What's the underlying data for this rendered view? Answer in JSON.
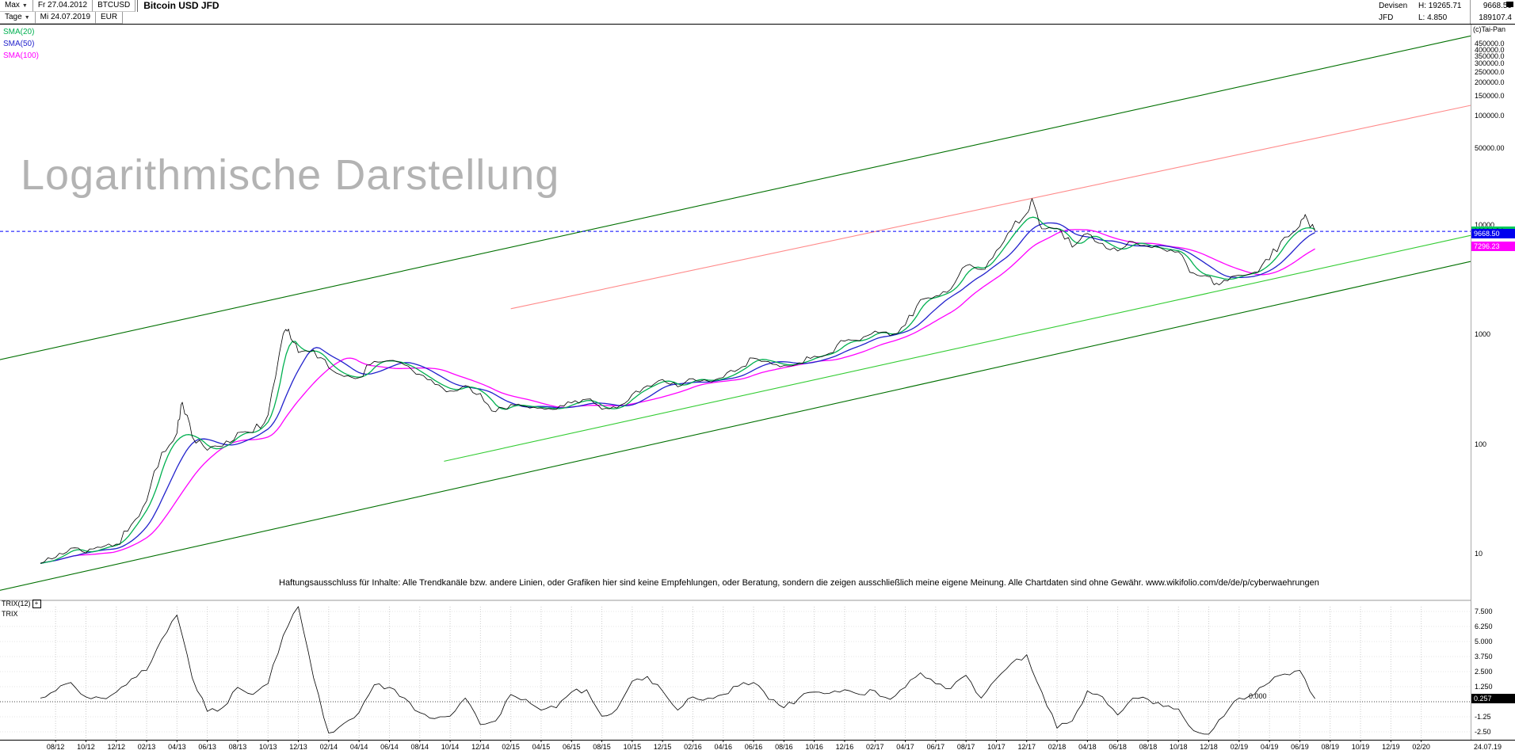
{
  "toolbar": {
    "range_label": "Max",
    "start_date": "Fr 27.04.2012",
    "symbol": "BTCUSD",
    "title": "Bitcoin USD JFD",
    "period_label": "Tage",
    "end_date": "Mi 24.07.2019",
    "currency": "EUR",
    "right": {
      "category": "Devisen",
      "provider": "JFD",
      "high": "H: 19265.71",
      "low": "L: 4.850",
      "last": "9668.50",
      "extra": "189107.4"
    }
  },
  "legend": [
    {
      "label": "SMA(20)",
      "color": "#00b050"
    },
    {
      "label": "SMA(50)",
      "color": "#2323cc"
    },
    {
      "label": "SMA(100)",
      "color": "#ff00ff"
    }
  ],
  "watermark": "Logarithmische Darstellung",
  "copyright": "(c)Tai-Pan",
  "price_axis": [
    {
      "text": "450000.0",
      "value": 450000
    },
    {
      "text": "400000.0",
      "value": 400000
    },
    {
      "text": "350000.0",
      "value": 350000
    },
    {
      "text": "300000.0",
      "value": 300000
    },
    {
      "text": "250000.0",
      "value": 250000
    },
    {
      "text": "200000.0",
      "value": 200000
    },
    {
      "text": "150000.0",
      "value": 150000
    },
    {
      "text": "100000.0",
      "value": 100000
    },
    {
      "text": "50000.00",
      "value": 50000
    },
    {
      "text": "10000",
      "value": 10000
    },
    {
      "text": "1000",
      "value": 1000
    },
    {
      "text": "100",
      "value": 100
    },
    {
      "text": "10",
      "value": 10
    }
  ],
  "price_markers": [
    {
      "text": "10064.34",
      "value": 10064.34,
      "bg": "#00c85a",
      "fg": "#000000"
    },
    {
      "text": "9668.50",
      "value": 9668.5,
      "bg": "#0000ee",
      "fg": "#ffffff"
    },
    {
      "text": "7296.23",
      "value": 7296.23,
      "bg": "#ff00ff",
      "fg": "#ffffff"
    }
  ],
  "disclaimer": "Haftungsausschluss für Inhalte: Alle Trendkanäle bzw. andere Linien, oder Grafiken hier sind keine Empfehlungen, oder Beratung, sondern die zeigen ausschließlich meine eigene Meinung. Alle Chartdaten sind ohne Gewähr.  www.wikifolio.com/de/de/p/cyberwaehrungen",
  "trix_panel": {
    "label": "TRIX(12)",
    "plus": "+",
    "sub_label": "TRIX"
  },
  "trix_axis": [
    {
      "text": "7.500",
      "value": 7.5
    },
    {
      "text": "6.250",
      "value": 6.25
    },
    {
      "text": "5.000",
      "value": 5
    },
    {
      "text": "3.750",
      "value": 3.75
    },
    {
      "text": "2.500",
      "value": 2.5
    },
    {
      "text": "1.250",
      "value": 1.25
    },
    {
      "text": "-1.25",
      "value": -1.25
    },
    {
      "text": "-2.50",
      "value": -2.5
    }
  ],
  "trix_marker": {
    "text": "0.257",
    "value": 0.257,
    "bg": "#000000",
    "fg": "#ffffff"
  },
  "trix_zero_label": {
    "text": "0.000",
    "value": 0
  },
  "x_axis": [
    "08/12",
    "10/12",
    "12/12",
    "02/13",
    "04/13",
    "06/13",
    "08/13",
    "10/13",
    "12/13",
    "02/14",
    "04/14",
    "06/14",
    "08/14",
    "10/14",
    "12/14",
    "02/15",
    "04/15",
    "06/15",
    "08/15",
    "10/15",
    "12/15",
    "02/16",
    "04/16",
    "06/16",
    "08/16",
    "10/16",
    "12/16",
    "02/17",
    "04/17",
    "06/17",
    "08/17",
    "10/17",
    "12/17",
    "02/18",
    "04/18",
    "06/18",
    "08/18",
    "10/18",
    "12/18",
    "02/19",
    "04/19",
    "06/19",
    "08/19",
    "10/19",
    "12/19",
    "02/20"
  ],
  "last_date": "24.07.19",
  "chart_data": {
    "type": "line",
    "title": "Bitcoin USD JFD",
    "y_scale": "log",
    "interval": "monthly",
    "start": "2012-07",
    "end": "2019-07",
    "series": [
      {
        "name": "BTCUSD",
        "color": "#000000",
        "monthly_close": [
          9.0,
          10.2,
          12.4,
          11.2,
          12.6,
          13.5,
          20.4,
          33.4,
          93,
          139,
          129,
          97,
          106,
          141,
          141,
          204,
          1120,
          757,
          800,
          550,
          458,
          446,
          628,
          640,
          583,
          478,
          388,
          338,
          378,
          320,
          218,
          254,
          244,
          236,
          230,
          263,
          284,
          230,
          236,
          314,
          377,
          430,
          368,
          437,
          416,
          448,
          531,
          673,
          624,
          575,
          610,
          700,
          745,
          963,
          970,
          1190,
          1080,
          1350,
          2300,
          2480,
          2875,
          4703,
          4340,
          6450,
          10100,
          14100,
          10200,
          10300,
          6930,
          9240,
          7500,
          6400,
          7780,
          7010,
          6630,
          6300,
          4020,
          3740,
          3460,
          3850,
          4100,
          5320,
          8560,
          10800,
          9668.5
        ]
      }
    ],
    "extremes": [
      {
        "index": 9,
        "price": 266
      },
      {
        "index": 16,
        "price": 1240
      },
      {
        "index": 65,
        "price": 19265.71
      },
      {
        "index": 77,
        "price": 3150
      },
      {
        "index": 83,
        "price": 13800
      }
    ],
    "sma": [
      {
        "name": "SMA(20)",
        "period": 20,
        "color": "#00b050"
      },
      {
        "name": "SMA(50)",
        "period": 50,
        "color": "#2222cc"
      },
      {
        "name": "SMA(100)",
        "period": 100,
        "color": "#ff00ff"
      }
    ],
    "trendlines": [
      {
        "name": "upper-channel",
        "color": "#007000",
        "style": "solid",
        "from": {
          "month": -2.7,
          "price": 650
        },
        "to": {
          "month": 94.3,
          "price": 590000
        }
      },
      {
        "name": "lower-channel",
        "color": "#007000",
        "style": "solid",
        "from": {
          "month": -2.7,
          "price": 5.1
        },
        "to": {
          "month": 94.3,
          "price": 5150
        }
      },
      {
        "name": "support-line",
        "color": "#33cc33",
        "style": "solid",
        "from": {
          "month": 26.6,
          "price": 77
        },
        "to": {
          "month": 94.3,
          "price": 8900
        }
      },
      {
        "name": "resistance-line",
        "color": "#ff8a8a",
        "style": "solid",
        "from": {
          "month": 31,
          "price": 1900
        },
        "to": {
          "month": 94.3,
          "price": 137000
        }
      }
    ],
    "current_price_line": {
      "price": 9668.5,
      "color": "#0000ff",
      "style": "dashed"
    },
    "indicator": {
      "name": "TRIX(12)",
      "ylim": [
        -2.5,
        7.5
      ],
      "last_value": 0.257,
      "monthly_values": [
        0.3,
        0.9,
        1.6,
        0.4,
        0.3,
        0.8,
        1.9,
        2.6,
        5.2,
        7.2,
        2.0,
        -0.8,
        -0.5,
        1.2,
        0.6,
        1.5,
        5.5,
        7.9,
        2.0,
        -2.6,
        -1.8,
        -0.9,
        1.4,
        1.2,
        0.3,
        -0.9,
        -1.4,
        -1.2,
        0.3,
        -1.9,
        -1.6,
        0.6,
        0.2,
        -0.7,
        -0.5,
        0.8,
        1.0,
        -1.2,
        -0.6,
        1.7,
        2.1,
        0.9,
        -0.7,
        0.4,
        0.3,
        0.6,
        1.3,
        1.6,
        0.2,
        -0.5,
        0.3,
        0.8,
        0.7,
        1.0,
        0.6,
        0.9,
        0.2,
        1.2,
        2.4,
        1.5,
        1.1,
        2.2,
        0.3,
        1.9,
        3.2,
        3.9,
        0.8,
        -2.2,
        -1.6,
        0.9,
        0.4,
        -1.1,
        0.3,
        0.2,
        -0.4,
        -0.6,
        -2.4,
        -2.7,
        -1.2,
        0.3,
        0.6,
        1.6,
        2.3,
        2.6,
        0.257
      ]
    }
  }
}
